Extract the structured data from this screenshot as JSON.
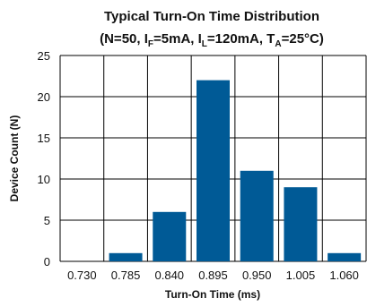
{
  "chart_data": {
    "type": "bar",
    "title": "Typical Turn-On Time Distribution",
    "subtitle": [
      {
        "t": "(N=50, I",
        "s": false
      },
      {
        "t": "F",
        "s": true
      },
      {
        "t": "=5mA, I",
        "s": false
      },
      {
        "t": "L",
        "s": true
      },
      {
        "t": "=120mA, T",
        "s": false
      },
      {
        "t": "A",
        "s": true
      },
      {
        "t": "=25°C)",
        "s": false
      }
    ],
    "xlabel": "Turn-On Time (ms)",
    "ylabel": "Device Count (N)",
    "categories": [
      "0.730",
      "0.785",
      "0.840",
      "0.895",
      "0.950",
      "1.005",
      "1.060"
    ],
    "values": [
      0,
      1,
      6,
      22,
      11,
      9,
      1
    ],
    "ylim": [
      0,
      25
    ],
    "yticks": [
      "0",
      "5",
      "10",
      "15",
      "20",
      "25"
    ],
    "grid": true,
    "bar_color": "#005a96",
    "grid_color": "#000000"
  }
}
